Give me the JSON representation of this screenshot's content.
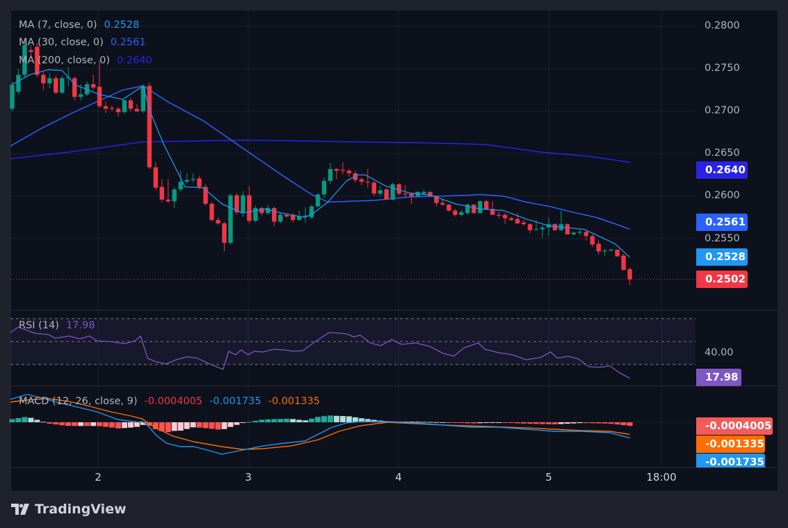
{
  "app": {
    "brand": "TradingView"
  },
  "legend": {
    "ma7": {
      "label": "MA (7, close, 0)",
      "value": "0.2528",
      "color": "#2196f3"
    },
    "ma30": {
      "label": "MA (30, close, 0)",
      "value": "0.2561",
      "color": "#2962ff"
    },
    "ma200": {
      "label": "MA (200, close, 0)",
      "value": "0.2640",
      "color": "#2a22e8"
    },
    "rsi": {
      "label": "RSI (14)",
      "value": "17.98",
      "color": "#7e57c2"
    },
    "macd": {
      "label": "MACD (12, 26, close, 9)",
      "hist": "-0.0004005",
      "macd": "-0.001735",
      "signal": "-0.001335"
    }
  },
  "badges": {
    "ma200": "0.2640",
    "ma30": "0.2561",
    "ma7": "0.2528",
    "last_price": "0.2502",
    "rsi": "17.98",
    "macd_hist": "-0.0004005",
    "macd_signal": "-0.001335",
    "macd_line": "-0.001735"
  },
  "colors": {
    "up": "#089981",
    "down": "#f23645",
    "hist_up_strong": "#26a69a",
    "hist_up_weak": "#b2dfdb",
    "hist_down_strong": "#ff5252",
    "hist_down_weak": "#ffcdd2",
    "signal": "#ff6d00",
    "macd": "#2196f3"
  },
  "chart_data": {
    "type": "candlestick",
    "interval": "1h",
    "price_axis": {
      "ticks": [
        "0.2800",
        "0.2750",
        "0.2700",
        "0.2650",
        "0.2600",
        "0.2550"
      ],
      "range": [
        0.2485,
        0.2808
      ]
    },
    "time_axis": {
      "ticks": [
        "2",
        "3",
        "4",
        "5",
        "18:00"
      ]
    },
    "rsi_axis": {
      "ticks": [
        "40.00"
      ],
      "bands": [
        70,
        50,
        30
      ]
    },
    "last_price": 0.2502,
    "ohlc": [
      [
        0.2703,
        0.2735,
        0.27,
        0.2731
      ],
      [
        0.2723,
        0.275,
        0.272,
        0.2743
      ],
      [
        0.2743,
        0.2785,
        0.274,
        0.2778
      ],
      [
        0.2772,
        0.2778,
        0.2765,
        0.277
      ],
      [
        0.2776,
        0.278,
        0.274,
        0.2743
      ],
      [
        0.2743,
        0.2746,
        0.2725,
        0.2733
      ],
      [
        0.2733,
        0.2745,
        0.2727,
        0.2739
      ],
      [
        0.2739,
        0.2742,
        0.272,
        0.2722
      ],
      [
        0.2722,
        0.2742,
        0.272,
        0.2739
      ],
      [
        0.2739,
        0.2752,
        0.273,
        0.274
      ],
      [
        0.2739,
        0.2741,
        0.2713,
        0.2717
      ],
      [
        0.2717,
        0.2732,
        0.2713,
        0.272
      ],
      [
        0.272,
        0.2735,
        0.2718,
        0.2732
      ],
      [
        0.2732,
        0.2743,
        0.2725,
        0.2728
      ],
      [
        0.2729,
        0.276,
        0.2704,
        0.2706
      ],
      [
        0.2706,
        0.2712,
        0.2698,
        0.2703
      ],
      [
        0.2704,
        0.2707,
        0.27,
        0.2703
      ],
      [
        0.2703,
        0.2705,
        0.2694,
        0.2699
      ],
      [
        0.2699,
        0.2714,
        0.2697,
        0.2713
      ],
      [
        0.2713,
        0.2716,
        0.27,
        0.2703
      ],
      [
        0.2703,
        0.2708,
        0.2699,
        0.27
      ],
      [
        0.27,
        0.2732,
        0.2698,
        0.273
      ],
      [
        0.273,
        0.2734,
        0.2632,
        0.2634
      ],
      [
        0.2634,
        0.264,
        0.2607,
        0.261
      ],
      [
        0.2611,
        0.262,
        0.2593,
        0.2596
      ],
      [
        0.2596,
        0.262,
        0.2592,
        0.2594
      ],
      [
        0.2594,
        0.2611,
        0.2586,
        0.2608
      ],
      [
        0.2608,
        0.263,
        0.2605,
        0.2617
      ],
      [
        0.2617,
        0.2627,
        0.2615,
        0.2619
      ],
      [
        0.2619,
        0.2627,
        0.2616,
        0.262
      ],
      [
        0.2621,
        0.2624,
        0.2608,
        0.2611
      ],
      [
        0.2611,
        0.2614,
        0.2589,
        0.2591
      ],
      [
        0.2591,
        0.2593,
        0.257,
        0.2572
      ],
      [
        0.2572,
        0.2575,
        0.2566,
        0.2568
      ],
      [
        0.2568,
        0.257,
        0.2535,
        0.2545
      ],
      [
        0.2545,
        0.2603,
        0.2543,
        0.2601
      ],
      [
        0.2601,
        0.2604,
        0.2578,
        0.2581
      ],
      [
        0.2581,
        0.2606,
        0.2576,
        0.2601
      ],
      [
        0.2601,
        0.2612,
        0.2568,
        0.2571
      ],
      [
        0.2571,
        0.2589,
        0.2569,
        0.2586
      ],
      [
        0.2586,
        0.2588,
        0.2577,
        0.258
      ],
      [
        0.258,
        0.259,
        0.2578,
        0.2586
      ],
      [
        0.2586,
        0.2588,
        0.2565,
        0.257
      ],
      [
        0.257,
        0.258,
        0.2568,
        0.2578
      ],
      [
        0.2578,
        0.258,
        0.2575,
        0.2576
      ],
      [
        0.2578,
        0.258,
        0.2569,
        0.2572
      ],
      [
        0.2572,
        0.2583,
        0.2571,
        0.2576
      ],
      [
        0.2576,
        0.2587,
        0.2569,
        0.2577
      ],
      [
        0.2575,
        0.259,
        0.2573,
        0.2588
      ],
      [
        0.2588,
        0.2603,
        0.2586,
        0.2602
      ],
      [
        0.2602,
        0.2622,
        0.2598,
        0.2618
      ],
      [
        0.2618,
        0.2639,
        0.2614,
        0.2632
      ],
      [
        0.2632,
        0.2633,
        0.262,
        0.263
      ],
      [
        0.2631,
        0.264,
        0.2626,
        0.263
      ],
      [
        0.263,
        0.2632,
        0.2623,
        0.2627
      ],
      [
        0.2627,
        0.263,
        0.2616,
        0.2619
      ],
      [
        0.262,
        0.2622,
        0.2613,
        0.2617
      ],
      [
        0.2617,
        0.2632,
        0.261,
        0.2616
      ],
      [
        0.2616,
        0.2618,
        0.26,
        0.2603
      ],
      [
        0.2603,
        0.2612,
        0.26,
        0.2607
      ],
      [
        0.2608,
        0.261,
        0.2596,
        0.2596
      ],
      [
        0.2596,
        0.2616,
        0.2595,
        0.2614
      ],
      [
        0.2614,
        0.2615,
        0.2601,
        0.2603
      ],
      [
        0.2603,
        0.2613,
        0.2598,
        0.2602
      ],
      [
        0.2603,
        0.2604,
        0.2591,
        0.26
      ],
      [
        0.26,
        0.2606,
        0.2599,
        0.2605
      ],
      [
        0.2603,
        0.2608,
        0.2602,
        0.2605
      ],
      [
        0.2605,
        0.2606,
        0.2599,
        0.26
      ],
      [
        0.26,
        0.2601,
        0.2588,
        0.2592
      ],
      [
        0.2592,
        0.2596,
        0.2589,
        0.259
      ],
      [
        0.259,
        0.2591,
        0.2582,
        0.2583
      ],
      [
        0.2583,
        0.2585,
        0.2576,
        0.2578
      ],
      [
        0.2578,
        0.2584,
        0.2576,
        0.2581
      ],
      [
        0.258,
        0.2591,
        0.2578,
        0.259
      ],
      [
        0.259,
        0.2591,
        0.258,
        0.258
      ],
      [
        0.258,
        0.2595,
        0.258,
        0.2594
      ],
      [
        0.2594,
        0.2596,
        0.2584,
        0.2584
      ],
      [
        0.2585,
        0.2594,
        0.2578,
        0.2578
      ],
      [
        0.2578,
        0.2582,
        0.2574,
        0.2577
      ],
      [
        0.2578,
        0.258,
        0.2567,
        0.2574
      ],
      [
        0.2574,
        0.2576,
        0.2571,
        0.2572
      ],
      [
        0.2573,
        0.258,
        0.2567,
        0.2568
      ],
      [
        0.2569,
        0.2572,
        0.2565,
        0.2567
      ],
      [
        0.2567,
        0.2568,
        0.2556,
        0.256
      ],
      [
        0.256,
        0.2572,
        0.256,
        0.2561
      ],
      [
        0.2561,
        0.2566,
        0.2551,
        0.2563
      ],
      [
        0.2563,
        0.2575,
        0.2553,
        0.2567
      ],
      [
        0.2567,
        0.2568,
        0.2559,
        0.256
      ],
      [
        0.256,
        0.2583,
        0.2559,
        0.2567
      ],
      [
        0.2567,
        0.2568,
        0.2555,
        0.2555
      ],
      [
        0.2555,
        0.2558,
        0.2554,
        0.2557
      ],
      [
        0.2557,
        0.2562,
        0.2554,
        0.2558
      ],
      [
        0.2558,
        0.2559,
        0.2548,
        0.2553
      ],
      [
        0.2553,
        0.2555,
        0.254,
        0.2543
      ],
      [
        0.2544,
        0.2548,
        0.2531,
        0.2535
      ],
      [
        0.2535,
        0.2538,
        0.253,
        0.2536
      ],
      [
        0.2536,
        0.2538,
        0.2535,
        0.2537
      ],
      [
        0.2537,
        0.2537,
        0.2529,
        0.2529
      ],
      [
        0.253,
        0.2532,
        0.2513,
        0.2513
      ],
      [
        0.2514,
        0.2516,
        0.2495,
        0.2502
      ]
    ],
    "ma7": [
      [
        -0.1,
        0.2731
      ],
      [
        2.8,
        0.2743
      ],
      [
        5.8,
        0.2749
      ],
      [
        8,
        0.2748
      ],
      [
        10.2,
        0.2731
      ],
      [
        13.9,
        0.272
      ],
      [
        17.7,
        0.2714
      ],
      [
        21,
        0.273
      ],
      [
        22.1,
        0.27
      ],
      [
        24.3,
        0.2661
      ],
      [
        27.7,
        0.2611
      ],
      [
        30.6,
        0.261
      ],
      [
        33.6,
        0.2591
      ],
      [
        36.9,
        0.258
      ],
      [
        40.6,
        0.2585
      ],
      [
        43.2,
        0.258
      ],
      [
        46.9,
        0.2575
      ],
      [
        48.3,
        0.258
      ],
      [
        50.6,
        0.2593
      ],
      [
        53.6,
        0.2618
      ],
      [
        55.4,
        0.2625
      ],
      [
        56.6,
        0.2625
      ],
      [
        59.9,
        0.2612
      ],
      [
        63.6,
        0.2604
      ],
      [
        67.2,
        0.2601
      ],
      [
        71,
        0.2591
      ],
      [
        75,
        0.2585
      ],
      [
        78.8,
        0.2583
      ],
      [
        82.4,
        0.2573
      ],
      [
        86.1,
        0.2565
      ],
      [
        91.7,
        0.2561
      ],
      [
        94.3,
        0.2552
      ],
      [
        96.6,
        0.2544
      ],
      [
        99,
        0.2528
      ]
    ],
    "ma30": [
      [
        -0.9,
        0.2659
      ],
      [
        4.7,
        0.268
      ],
      [
        10.2,
        0.27
      ],
      [
        17.7,
        0.2725
      ],
      [
        21,
        0.273
      ],
      [
        25,
        0.2711
      ],
      [
        30.6,
        0.2689
      ],
      [
        36.9,
        0.2657
      ],
      [
        43.2,
        0.2625
      ],
      [
        48,
        0.2602
      ],
      [
        50.6,
        0.2593
      ],
      [
        58,
        0.2595
      ],
      [
        63.6,
        0.2599
      ],
      [
        72.8,
        0.2601
      ],
      [
        75,
        0.2602
      ],
      [
        78.8,
        0.26
      ],
      [
        82.4,
        0.2593
      ],
      [
        86.1,
        0.2588
      ],
      [
        89.9,
        0.2581
      ],
      [
        93.6,
        0.2575
      ],
      [
        97.2,
        0.2566
      ],
      [
        99,
        0.2561
      ]
    ],
    "ma200": [
      [
        -0.9,
        0.2644
      ],
      [
        9.1,
        0.2652
      ],
      [
        21,
        0.2664
      ],
      [
        36.9,
        0.2666
      ],
      [
        48,
        0.2665
      ],
      [
        53.6,
        0.2664
      ],
      [
        64.7,
        0.2663
      ],
      [
        75.8,
        0.2661
      ],
      [
        84.7,
        0.2652
      ],
      [
        92.4,
        0.2647
      ],
      [
        99,
        0.264
      ]
    ],
    "rsi": [
      [
        -0.3,
        57.9
      ],
      [
        1,
        62.7
      ],
      [
        2.1,
        60.3
      ],
      [
        3.6,
        57.3
      ],
      [
        5.8,
        56.1
      ],
      [
        6.9,
        53
      ],
      [
        9.1,
        54.8
      ],
      [
        10.8,
        52.4
      ],
      [
        12.4,
        54.8
      ],
      [
        13.6,
        50.6
      ],
      [
        15.8,
        50
      ],
      [
        18,
        48.2
      ],
      [
        19.7,
        50.6
      ],
      [
        20.6,
        54.8
      ],
      [
        21.7,
        35.5
      ],
      [
        23,
        32.4
      ],
      [
        24.7,
        30.6
      ],
      [
        26.3,
        34.2
      ],
      [
        28,
        36.7
      ],
      [
        29.7,
        35.5
      ],
      [
        31.3,
        31.2
      ],
      [
        33,
        27.6
      ],
      [
        33.8,
        25.8
      ],
      [
        34.7,
        41.5
      ],
      [
        35.8,
        38.5
      ],
      [
        36.7,
        42.7
      ],
      [
        37.8,
        38.5
      ],
      [
        38.8,
        41.5
      ],
      [
        40.2,
        40.9
      ],
      [
        41.9,
        43.3
      ],
      [
        43.6,
        42.7
      ],
      [
        45.2,
        41.5
      ],
      [
        46.6,
        42.1
      ],
      [
        48.6,
        50
      ],
      [
        50.8,
        57.9
      ],
      [
        53.6,
        56.7
      ],
      [
        54.7,
        54.2
      ],
      [
        55.8,
        55.5
      ],
      [
        57.4,
        48.8
      ],
      [
        59.1,
        46.4
      ],
      [
        60.8,
        51.8
      ],
      [
        62.4,
        47.6
      ],
      [
        64.7,
        48.8
      ],
      [
        66.9,
        45.8
      ],
      [
        69.1,
        39.7
      ],
      [
        70.8,
        37.3
      ],
      [
        72.4,
        44.5
      ],
      [
        74.7,
        48.8
      ],
      [
        75.8,
        43.3
      ],
      [
        78,
        40.3
      ],
      [
        80.2,
        38.5
      ],
      [
        82.4,
        34.2
      ],
      [
        84.7,
        36.1
      ],
      [
        86.3,
        41
      ],
      [
        87.4,
        35.5
      ],
      [
        89.1,
        37.3
      ],
      [
        90.8,
        34.8
      ],
      [
        92.4,
        28.2
      ],
      [
        94.1,
        27.6
      ],
      [
        95.8,
        28.8
      ],
      [
        97.4,
        22.7
      ],
      [
        99,
        17.98
      ]
    ],
    "macd": [
      [
        -0.3,
        0.00254
      ],
      [
        2.4,
        0.00308
      ],
      [
        4.7,
        0.00269
      ],
      [
        8,
        0.00208
      ],
      [
        11.3,
        0.00154
      ],
      [
        13.6,
        0.00115
      ],
      [
        16.9,
        0.00031
      ],
      [
        20.2,
        0
      ],
      [
        20.8,
        8e-05
      ],
      [
        21.7,
        -0.00031
      ],
      [
        23,
        -0.00138
      ],
      [
        24.7,
        -0.00231
      ],
      [
        26.9,
        -0.00269
      ],
      [
        29.1,
        -0.00269
      ],
      [
        31.3,
        -0.00308
      ],
      [
        33.6,
        -0.00354
      ],
      [
        35.2,
        -0.00331
      ],
      [
        36.9,
        -0.00308
      ],
      [
        40.2,
        -0.00262
      ],
      [
        43.6,
        -0.00231
      ],
      [
        46.9,
        -0.00208
      ],
      [
        49.1,
        -0.00131
      ],
      [
        51.3,
        -0.00054
      ],
      [
        53.6,
        -8e-05
      ],
      [
        55.8,
        8e-05
      ],
      [
        60.2,
        8e-05
      ],
      [
        64.7,
        -8e-05
      ],
      [
        69.1,
        -0.00031
      ],
      [
        73.6,
        -0.00054
      ],
      [
        78,
        -0.00054
      ],
      [
        82.4,
        -0.00077
      ],
      [
        86.9,
        -0.001
      ],
      [
        91.3,
        -0.001
      ],
      [
        95.8,
        -0.00115
      ],
      [
        99,
        -0.001735
      ]
    ],
    "signal": [
      [
        -0.3,
        0.00223
      ],
      [
        2.4,
        0.00246
      ],
      [
        5.8,
        0.00262
      ],
      [
        9.1,
        0.00231
      ],
      [
        12.4,
        0.00177
      ],
      [
        15.8,
        0.00115
      ],
      [
        19.1,
        0.00069
      ],
      [
        20.8,
        0.00038
      ],
      [
        23,
        -0.00062
      ],
      [
        25.8,
        -0.00154
      ],
      [
        29.1,
        -0.00215
      ],
      [
        33.6,
        -0.00269
      ],
      [
        36.9,
        -0.003
      ],
      [
        40.2,
        -0.00292
      ],
      [
        44.7,
        -0.00262
      ],
      [
        49.1,
        -0.00192
      ],
      [
        52.4,
        -0.001
      ],
      [
        55.8,
        -0.00038
      ],
      [
        60.2,
        0
      ],
      [
        64.7,
        -0.00015
      ],
      [
        69.1,
        -0.00031
      ],
      [
        75.8,
        -0.00046
      ],
      [
        82.4,
        -0.00062
      ],
      [
        86.9,
        -0.00077
      ],
      [
        91.3,
        -0.00092
      ],
      [
        95.8,
        -0.001
      ],
      [
        99,
        -0.001335
      ]
    ]
  }
}
